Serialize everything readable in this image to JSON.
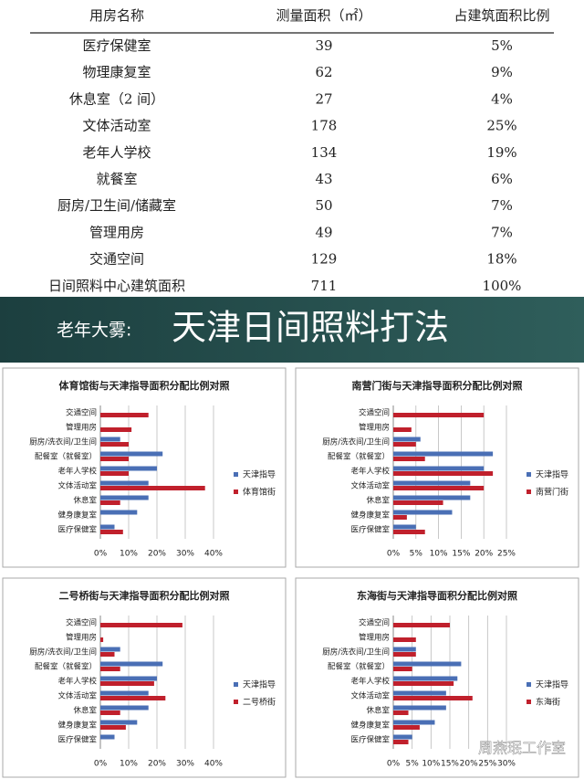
{
  "table": {
    "header": [
      "用房名称",
      "测量面积（㎡）",
      "占建筑面积比例"
    ],
    "rows": [
      [
        "医疗保健室",
        "39",
        "5%"
      ],
      [
        "物理康复室",
        "62",
        "9%"
      ],
      [
        "休息室（2 间）",
        "27",
        "4%"
      ],
      [
        "文体活动室",
        "178",
        "25%"
      ],
      [
        "老年人学校",
        "134",
        "19%"
      ],
      [
        "就餐室",
        "43",
        "6%"
      ],
      [
        "厨房/卫生间/储藏室",
        "50",
        "7%"
      ],
      [
        "管理用房",
        "49",
        "7%"
      ],
      [
        "交通空间",
        "129",
        "18%"
      ],
      [
        "日间照料中心建筑面积",
        "711",
        "100%"
      ]
    ]
  },
  "banner": {
    "prefix": "老年大雾:",
    "title": "天津日间照料打法"
  },
  "watermark": "周燕珉工作室",
  "chart_data": [
    {
      "type": "bar",
      "orientation": "horizontal",
      "title": "体育馆街与天津指导面积分配比例对照",
      "categories": [
        "交通空间",
        "管理用房",
        "厨房/洗衣间/卫生间",
        "配餐室（就餐室）",
        "老年人学校",
        "文体活动室",
        "休息室",
        "健身康复室",
        "医疗保健室"
      ],
      "series": [
        {
          "name": "天津指导",
          "color": "#4a6fb5",
          "values": [
            null,
            null,
            7,
            22,
            20,
            17,
            17,
            13,
            5
          ]
        },
        {
          "name": "体育馆街",
          "color": "#c0202c",
          "values": [
            17,
            11,
            10,
            10,
            10,
            37,
            7,
            null,
            8
          ]
        }
      ],
      "xlim": [
        0,
        40
      ],
      "xticks": [
        {
          "value": 0,
          "label": "0%"
        },
        {
          "value": 10,
          "label": "10%"
        },
        {
          "value": 20,
          "label": "20%"
        },
        {
          "value": 30,
          "label": "30%"
        },
        {
          "value": 40,
          "label": "40%"
        }
      ],
      "grid": true,
      "legend": "right"
    },
    {
      "type": "bar",
      "orientation": "horizontal",
      "title": "南营门街与天津指导面积分配比例对照",
      "categories": [
        "交通空间",
        "管理用房",
        "厨房/洗衣间/卫生间",
        "配餐室（就餐室）",
        "老年人学校",
        "文体活动室",
        "休息室",
        "健身康复室",
        "医疗保健室"
      ],
      "series": [
        {
          "name": "天津指导",
          "color": "#4a6fb5",
          "values": [
            null,
            null,
            6,
            22,
            20,
            17,
            17,
            13,
            5
          ]
        },
        {
          "name": "南营门街",
          "color": "#c0202c",
          "values": [
            20,
            4,
            5,
            7,
            22,
            20,
            11,
            3,
            7
          ]
        }
      ],
      "xlim": [
        0,
        25
      ],
      "xticks": [
        {
          "value": 0,
          "label": "0%"
        },
        {
          "value": 5,
          "label": "5%"
        },
        {
          "value": 10,
          "label": "10%"
        },
        {
          "value": 15,
          "label": "15%"
        },
        {
          "value": 20,
          "label": "20%"
        },
        {
          "value": 25,
          "label": "25%"
        }
      ],
      "grid": true,
      "legend": "right"
    },
    {
      "type": "bar",
      "orientation": "horizontal",
      "title": "二号桥街与天津指导面积分配比例对照",
      "categories": [
        "交通空间",
        "管理用房",
        "厨房/洗衣间/卫生间",
        "配餐室（就餐室）",
        "老年人学校",
        "文体活动室",
        "休息室",
        "健身康复室",
        "医疗保健室"
      ],
      "series": [
        {
          "name": "天津指导",
          "color": "#4a6fb5",
          "values": [
            null,
            null,
            7,
            22,
            20,
            17,
            17,
            13,
            5
          ]
        },
        {
          "name": "二号桥街",
          "color": "#c0202c",
          "values": [
            29,
            1,
            5,
            7,
            19,
            23,
            7,
            9,
            null
          ]
        }
      ],
      "xlim": [
        0,
        40
      ],
      "xticks": [
        {
          "value": 0,
          "label": "0%"
        },
        {
          "value": 10,
          "label": "10%"
        },
        {
          "value": 20,
          "label": "20%"
        },
        {
          "value": 30,
          "label": "30%"
        },
        {
          "value": 40,
          "label": "40%"
        }
      ],
      "grid": true,
      "legend": "right"
    },
    {
      "type": "bar",
      "orientation": "horizontal",
      "title": "东海街与天津指导面积分配比例对照",
      "categories": [
        "交通空间",
        "管理用房",
        "厨房/洗衣间/卫生间",
        "配餐室（就餐室）",
        "老年人学校",
        "文体活动室",
        "休息室",
        "健身康复室",
        "医疗保健室"
      ],
      "series": [
        {
          "name": "天津指导",
          "color": "#4a6fb5",
          "values": [
            null,
            null,
            6,
            18,
            17,
            14,
            14,
            11,
            5
          ]
        },
        {
          "name": "东海街",
          "color": "#c0202c",
          "values": [
            15,
            6,
            6,
            5,
            16,
            21,
            4,
            7,
            4
          ]
        }
      ],
      "xlim": [
        0,
        30
      ],
      "xticks": [
        {
          "value": 0,
          "label": "0%"
        },
        {
          "value": 5,
          "label": "5%"
        },
        {
          "value": 10,
          "label": "10%"
        },
        {
          "value": 15,
          "label": "15%"
        },
        {
          "value": 20,
          "label": "20%"
        },
        {
          "value": 25,
          "label": "25%"
        },
        {
          "value": 30,
          "label": "30%"
        }
      ],
      "grid": true,
      "legend": "right"
    }
  ]
}
